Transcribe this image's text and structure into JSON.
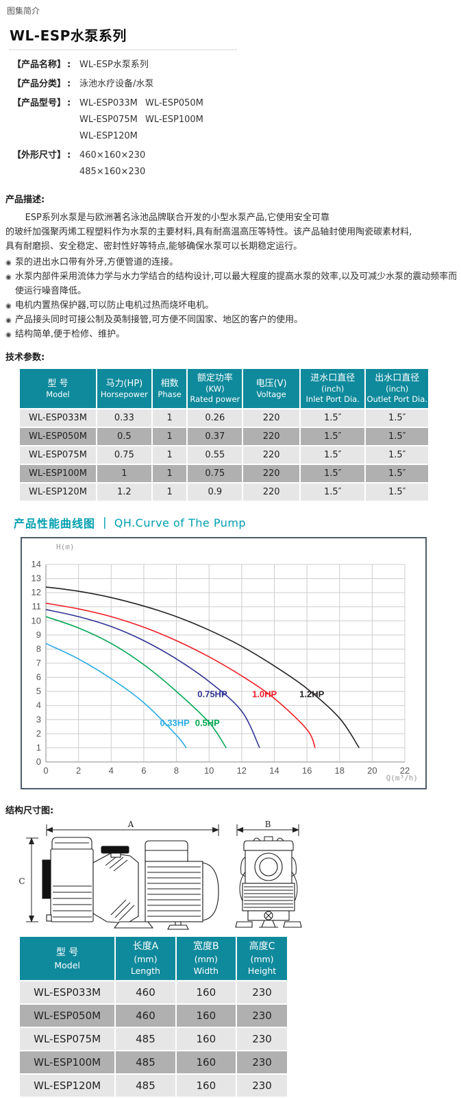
{
  "colors": {
    "teal": "#0f8a9c",
    "accent": "#009fb0",
    "row_light": "#e6e6e6",
    "row_dark": "#b0b0b0",
    "chart_border": "#4d5a68"
  },
  "page": {
    "breadcrumb": "图集简介"
  },
  "header": {
    "title": "WL-ESP水泵系列"
  },
  "info": {
    "name_label": "【产品名称】",
    "name_colon": ":",
    "name_value": "WL-ESP水泵系列",
    "category_label": "【产品分类】",
    "category_colon": ":",
    "category_value": "泳池水疗设备/水泵",
    "models_label": "【产品型号】",
    "models_colon": ":",
    "models": [
      "WL-ESP033M",
      "WL-ESP050M",
      "WL-ESP075M",
      "WL-ESP100M",
      "WL-ESP120M"
    ],
    "size_label": "【外形尺寸】",
    "size_colon": ":",
    "sizes": [
      "460×160×230",
      "485×160×230"
    ]
  },
  "description": {
    "heading": "产品描述:",
    "bullet_icon": "◉",
    "lines": [
      "ESP系列水泵是与欧洲著名泳池品牌联合开发的小型水泵产品,它使用安全可靠",
      "的玻纤加强聚丙烯工程塑料作为水泵的主要材料,具有耐高温高压等特性。该产品轴封使用陶瓷碳素材料,",
      "具有耐磨损、安全稳定、密封性好等特点,能够确保水泵可以长期稳定运行。"
    ],
    "bullets": [
      "泵的进出水口带有外牙,方便管道的连接。",
      "水泵内部件采用流体力学与水力学结合的结构设计,可以最大程度的提高水泵的效率,以及可减少水泵的震动频率而使运行噪音降低。",
      "电机内置热保护器,可以防止电机过热而烧坏电机。",
      "产品接头同时可接公制及英制接管,可方便不同国家、地区的客户的使用。",
      "结构简单,便于检修、维护。"
    ]
  },
  "tech_params": {
    "heading": "技术参数:",
    "columns": [
      [
        "型 号",
        "Model"
      ],
      [
        "马力(HP)",
        "Horsepower"
      ],
      [
        "相数",
        "Phase"
      ],
      [
        "额定功率",
        "(KW)",
        "Rated power"
      ],
      [
        "电压(V)",
        "Voltage"
      ],
      [
        "进水口直径",
        "(inch)",
        "Inlet Port Dia."
      ],
      [
        "出水口直径",
        "(inch)",
        "Outlet Port Dia."
      ]
    ],
    "col_widths": [
      "19%",
      "13.5%",
      "8.5%",
      "13.5%",
      "14%",
      "16%",
      "15.5%"
    ],
    "rows": [
      [
        "WL-ESP033M",
        "0.33",
        "1",
        "0.26",
        "220",
        "1.5″",
        "1.5″"
      ],
      [
        "WL-ESP050M",
        "0.5",
        "1",
        "0.37",
        "220",
        "1.5″",
        "1.5″"
      ],
      [
        "WL-ESP075M",
        "0.75",
        "1",
        "0.55",
        "220",
        "1.5″",
        "1.5″"
      ],
      [
        "WL-ESP100M",
        "1",
        "1",
        "0.75",
        "220",
        "1.5″",
        "1.5″"
      ],
      [
        "WL-ESP120M",
        "1.2",
        "1",
        "0.9",
        "220",
        "1.5″",
        "1.5″"
      ]
    ]
  },
  "curve_section": {
    "title_zh": "产品性能曲线图",
    "divider": "|",
    "title_en": "QH.Curve of The Pump"
  },
  "chart_data": {
    "type": "line",
    "xlabel": "Q(m³/h)",
    "ylabel": "H(m)",
    "xlim": [
      0,
      22
    ],
    "xstep": 2,
    "ylim": [
      0,
      14
    ],
    "ystep": 1,
    "grid": true,
    "legend_position": "inline-labels",
    "series": [
      {
        "name": "0.33HP",
        "color": "#29abe2",
        "label_pos": [
          7.9,
          2.55
        ],
        "points": [
          [
            0,
            8.4
          ],
          [
            2,
            7.3
          ],
          [
            4,
            5.9
          ],
          [
            6,
            4.2
          ],
          [
            8,
            1.9
          ],
          [
            8.6,
            1.0
          ]
        ]
      },
      {
        "name": "0.5HP",
        "color": "#00a651",
        "label_pos": [
          9.9,
          2.55
        ],
        "points": [
          [
            0,
            10.3
          ],
          [
            2,
            9.5
          ],
          [
            4,
            8.4
          ],
          [
            6,
            6.9
          ],
          [
            8,
            5.0
          ],
          [
            10,
            2.8
          ],
          [
            11.05,
            1.0
          ]
        ]
      },
      {
        "name": "0.75HP",
        "color": "#2e3192",
        "label_pos": [
          10.2,
          4.6
        ],
        "points": [
          [
            0,
            10.8
          ],
          [
            2,
            10.3
          ],
          [
            4,
            9.6
          ],
          [
            6,
            8.6
          ],
          [
            8,
            7.3
          ],
          [
            10,
            5.7
          ],
          [
            12,
            3.6
          ],
          [
            13.1,
            1.0
          ]
        ]
      },
      {
        "name": "1.0HP",
        "color": "#ed1c24",
        "label_pos": [
          13.4,
          4.6
        ],
        "points": [
          [
            0,
            11.25
          ],
          [
            2,
            10.85
          ],
          [
            4,
            10.3
          ],
          [
            6,
            9.55
          ],
          [
            8,
            8.6
          ],
          [
            10,
            7.45
          ],
          [
            12,
            6.1
          ],
          [
            14,
            4.5
          ],
          [
            16,
            2.3
          ],
          [
            16.5,
            1.0
          ]
        ]
      },
      {
        "name": "1.2HP",
        "color": "#231f20",
        "label_pos": [
          16.3,
          4.6
        ],
        "points": [
          [
            0,
            12.4
          ],
          [
            2,
            12.1
          ],
          [
            4,
            11.65
          ],
          [
            6,
            11.05
          ],
          [
            8,
            10.3
          ],
          [
            10,
            9.35
          ],
          [
            12,
            8.2
          ],
          [
            14,
            6.8
          ],
          [
            16,
            5.2
          ],
          [
            18,
            3.1
          ],
          [
            19.2,
            1.0
          ]
        ]
      }
    ]
  },
  "structure": {
    "heading": "结构尺寸图:",
    "dim_a": "A",
    "dim_b": "B",
    "dim_c": "C"
  },
  "dims_table": {
    "columns": [
      [
        "型 号",
        "Model"
      ],
      [
        "长度A",
        "(mm)",
        "Length"
      ],
      [
        "宽度B",
        "(mm)",
        "Width"
      ],
      [
        "高度C",
        "(mm)",
        "Height"
      ]
    ],
    "col_widths": [
      "36%",
      "22.5%",
      "22.5%",
      "19%"
    ],
    "rows": [
      [
        "WL-ESP033M",
        "460",
        "160",
        "230"
      ],
      [
        "WL-ESP050M",
        "460",
        "160",
        "230"
      ],
      [
        "WL-ESP075M",
        "485",
        "160",
        "230"
      ],
      [
        "WL-ESP100M",
        "485",
        "160",
        "230"
      ],
      [
        "WL-ESP120M",
        "485",
        "160",
        "230"
      ]
    ]
  }
}
